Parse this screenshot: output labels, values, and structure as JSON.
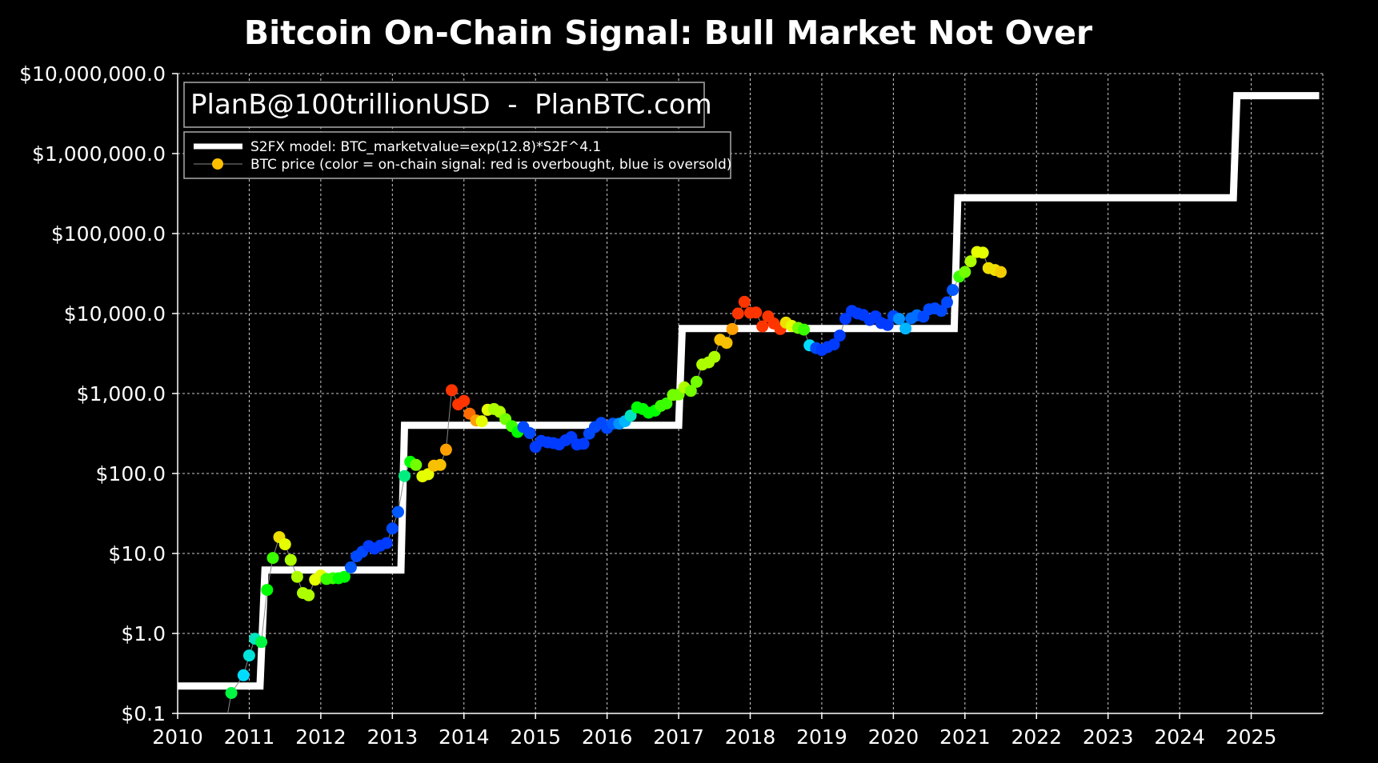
{
  "watermark": "PlanB@100trillionUSD  -  PlanBTC.com",
  "chart_data": {
    "type": "line",
    "title": "Bitcoin On-Chain Signal: Bull Market Not Over",
    "xlabel": "",
    "ylabel": "",
    "x_scale": "linear",
    "y_scale": "log",
    "xlim": [
      2010,
      2026
    ],
    "ylim": [
      0.1,
      10000000
    ],
    "grid": true,
    "legend_position": "top-left",
    "x_ticks": [
      "2010",
      "2011",
      "2012",
      "2013",
      "2014",
      "2015",
      "2016",
      "2017",
      "2018",
      "2019",
      "2020",
      "2021",
      "2022",
      "2023",
      "2024",
      "2025"
    ],
    "y_ticks": [
      "$0.1",
      "$1.0",
      "$10.0",
      "$100.0",
      "$1,000.0",
      "$10,000.0",
      "$100,000.0",
      "$1,000,000.0",
      "$10,000,000.0"
    ],
    "color_scale": "0 = blue (oversold) ... 1 = red (overbought)",
    "series": [
      {
        "name": "S2FX model: BTC_marketvalue=exp(12.8)*S2F^4.1",
        "color": "#ffffff",
        "kind": "step",
        "points": [
          [
            2010.0,
            0.22
          ],
          [
            2011.15,
            0.22
          ],
          [
            2011.22,
            6.2
          ],
          [
            2013.12,
            6.2
          ],
          [
            2013.17,
            400
          ],
          [
            2017.0,
            400
          ],
          [
            2017.05,
            6500
          ],
          [
            2020.85,
            6500
          ],
          [
            2020.9,
            280000
          ],
          [
            2024.75,
            280000
          ],
          [
            2024.8,
            5300000
          ],
          [
            2025.95,
            5300000
          ]
        ]
      },
      {
        "name": "BTC price (color = on-chain signal: red is overbought, blue is oversold)",
        "color": "#ffbf00",
        "kind": "scatter-line",
        "points": [
          [
            2010.7,
            0.08,
            0.45
          ],
          [
            2010.75,
            0.18,
            0.45
          ],
          [
            2010.92,
            0.3,
            0.3
          ],
          [
            2011.0,
            0.53,
            0.33
          ],
          [
            2011.08,
            0.86,
            0.35
          ],
          [
            2011.17,
            0.78,
            0.45
          ],
          [
            2011.25,
            3.5,
            0.5
          ],
          [
            2011.33,
            8.8,
            0.55
          ],
          [
            2011.42,
            16,
            0.75
          ],
          [
            2011.5,
            13,
            0.7
          ],
          [
            2011.58,
            8.3,
            0.65
          ],
          [
            2011.67,
            5.1,
            0.65
          ],
          [
            2011.75,
            3.2,
            0.65
          ],
          [
            2011.83,
            3.0,
            0.65
          ],
          [
            2011.92,
            4.7,
            0.7
          ],
          [
            2012.0,
            5.3,
            0.7
          ],
          [
            2012.08,
            4.8,
            0.55
          ],
          [
            2012.17,
            4.9,
            0.55
          ],
          [
            2012.25,
            4.9,
            0.5
          ],
          [
            2012.33,
            5.1,
            0.5
          ],
          [
            2012.42,
            6.7,
            0.12
          ],
          [
            2012.5,
            9.2,
            0.1
          ],
          [
            2012.58,
            10.5,
            0.1
          ],
          [
            2012.67,
            12.4,
            0.08
          ],
          [
            2012.75,
            11.5,
            0.08
          ],
          [
            2012.83,
            12.5,
            0.08
          ],
          [
            2012.92,
            13.5,
            0.08
          ],
          [
            2013.0,
            20.5,
            0.1
          ],
          [
            2013.08,
            33,
            0.12
          ],
          [
            2013.17,
            93,
            0.4
          ],
          [
            2013.25,
            140,
            0.5
          ],
          [
            2013.33,
            128,
            0.6
          ],
          [
            2013.42,
            92,
            0.7
          ],
          [
            2013.5,
            98,
            0.7
          ],
          [
            2013.58,
            125,
            0.8
          ],
          [
            2013.67,
            128,
            0.8
          ],
          [
            2013.75,
            198,
            0.85
          ],
          [
            2013.83,
            1100,
            0.95
          ],
          [
            2013.92,
            730,
            0.95
          ],
          [
            2014.0,
            810,
            0.95
          ],
          [
            2014.08,
            560,
            0.9
          ],
          [
            2014.17,
            460,
            0.85
          ],
          [
            2014.25,
            450,
            0.7
          ],
          [
            2014.33,
            625,
            0.7
          ],
          [
            2014.42,
            640,
            0.65
          ],
          [
            2014.5,
            590,
            0.65
          ],
          [
            2014.58,
            480,
            0.6
          ],
          [
            2014.67,
            390,
            0.55
          ],
          [
            2014.75,
            330,
            0.5
          ],
          [
            2014.83,
            380,
            0.1
          ],
          [
            2014.92,
            320,
            0.1
          ],
          [
            2015.0,
            215,
            0.08
          ],
          [
            2015.08,
            255,
            0.08
          ],
          [
            2015.17,
            245,
            0.08
          ],
          [
            2015.25,
            240,
            0.08
          ],
          [
            2015.33,
            230,
            0.08
          ],
          [
            2015.42,
            260,
            0.08
          ],
          [
            2015.5,
            285,
            0.08
          ],
          [
            2015.58,
            230,
            0.08
          ],
          [
            2015.67,
            235,
            0.08
          ],
          [
            2015.75,
            315,
            0.1
          ],
          [
            2015.83,
            380,
            0.1
          ],
          [
            2015.92,
            430,
            0.1
          ],
          [
            2016.0,
            370,
            0.1
          ],
          [
            2016.08,
            420,
            0.12
          ],
          [
            2016.17,
            420,
            0.2
          ],
          [
            2016.25,
            450,
            0.25
          ],
          [
            2016.33,
            530,
            0.35
          ],
          [
            2016.42,
            670,
            0.5
          ],
          [
            2016.5,
            640,
            0.5
          ],
          [
            2016.58,
            575,
            0.5
          ],
          [
            2016.67,
            610,
            0.5
          ],
          [
            2016.75,
            700,
            0.55
          ],
          [
            2016.83,
            750,
            0.55
          ],
          [
            2016.92,
            960,
            0.6
          ],
          [
            2017.0,
            970,
            0.6
          ],
          [
            2017.08,
            1190,
            0.65
          ],
          [
            2017.17,
            1080,
            0.6
          ],
          [
            2017.25,
            1400,
            0.6
          ],
          [
            2017.33,
            2300,
            0.65
          ],
          [
            2017.42,
            2450,
            0.65
          ],
          [
            2017.5,
            2870,
            0.65
          ],
          [
            2017.58,
            4700,
            0.8
          ],
          [
            2017.67,
            4300,
            0.8
          ],
          [
            2017.75,
            6400,
            0.85
          ],
          [
            2017.83,
            10000,
            0.95
          ],
          [
            2017.92,
            14000,
            0.95
          ],
          [
            2018.0,
            10200,
            0.95
          ],
          [
            2018.08,
            10300,
            0.95
          ],
          [
            2018.17,
            6900,
            0.95
          ],
          [
            2018.25,
            9200,
            0.95
          ],
          [
            2018.33,
            7500,
            0.95
          ],
          [
            2018.42,
            6400,
            0.95
          ],
          [
            2018.5,
            7700,
            0.75
          ],
          [
            2018.58,
            7000,
            0.7
          ],
          [
            2018.67,
            6600,
            0.6
          ],
          [
            2018.75,
            6300,
            0.55
          ],
          [
            2018.83,
            4000,
            0.3
          ],
          [
            2018.92,
            3700,
            0.1
          ],
          [
            2019.0,
            3500,
            0.08
          ],
          [
            2019.08,
            3800,
            0.08
          ],
          [
            2019.17,
            4100,
            0.08
          ],
          [
            2019.25,
            5300,
            0.08
          ],
          [
            2019.33,
            8600,
            0.08
          ],
          [
            2019.42,
            10800,
            0.08
          ],
          [
            2019.5,
            10000,
            0.08
          ],
          [
            2019.58,
            9600,
            0.08
          ],
          [
            2019.67,
            8300,
            0.08
          ],
          [
            2019.75,
            9200,
            0.08
          ],
          [
            2019.83,
            7600,
            0.08
          ],
          [
            2019.92,
            7200,
            0.08
          ],
          [
            2020.0,
            9300,
            0.1
          ],
          [
            2020.08,
            8600,
            0.2
          ],
          [
            2020.17,
            6500,
            0.25
          ],
          [
            2020.25,
            8700,
            0.15
          ],
          [
            2020.33,
            9500,
            0.15
          ],
          [
            2020.42,
            9100,
            0.1
          ],
          [
            2020.5,
            11300,
            0.1
          ],
          [
            2020.58,
            11600,
            0.1
          ],
          [
            2020.67,
            10800,
            0.1
          ],
          [
            2020.75,
            13800,
            0.1
          ],
          [
            2020.83,
            19700,
            0.12
          ],
          [
            2020.92,
            29000,
            0.55
          ],
          [
            2021.0,
            33000,
            0.6
          ],
          [
            2021.08,
            45000,
            0.65
          ],
          [
            2021.17,
            58800,
            0.7
          ],
          [
            2021.25,
            57700,
            0.7
          ],
          [
            2021.33,
            37000,
            0.75
          ],
          [
            2021.42,
            35000,
            0.75
          ],
          [
            2021.5,
            33000,
            0.78
          ]
        ]
      }
    ]
  }
}
